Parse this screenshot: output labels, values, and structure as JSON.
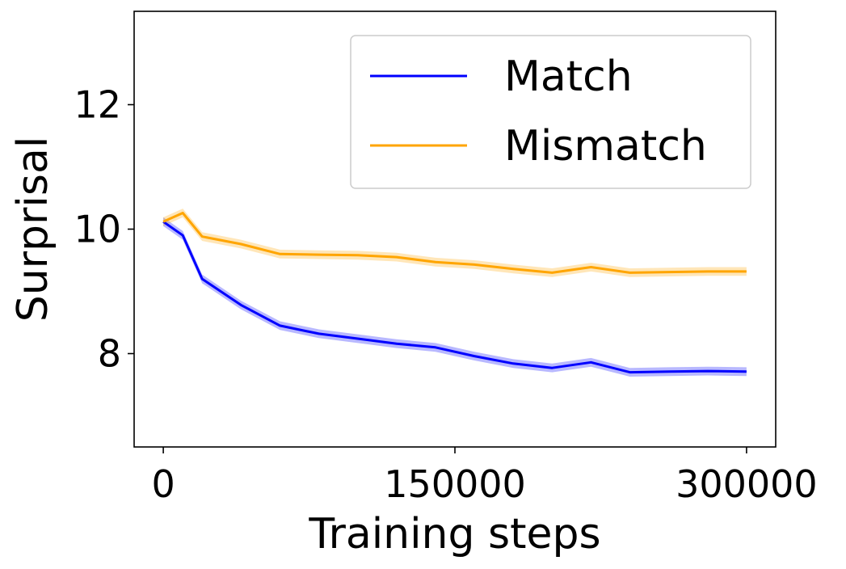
{
  "chart_data": {
    "type": "line",
    "xlabel": "Training steps",
    "ylabel": "Surprisal",
    "xlim": [
      -15000,
      315000
    ],
    "ylim": [
      6.5,
      13.5
    ],
    "xticks": [
      0,
      150000,
      300000
    ],
    "xtick_labels": [
      "0",
      "150000",
      "300000"
    ],
    "yticks": [
      8,
      10,
      12
    ],
    "ytick_labels": [
      "8",
      "10",
      "12"
    ],
    "grid": false,
    "legend_position": "top-right",
    "series": [
      {
        "name": "Match",
        "color": "#0000ff",
        "x": [
          0,
          10000,
          20000,
          40000,
          60000,
          80000,
          100000,
          120000,
          140000,
          160000,
          180000,
          200000,
          220000,
          240000,
          260000,
          280000,
          300000
        ],
        "y": [
          10.12,
          9.9,
          9.2,
          8.78,
          8.45,
          8.32,
          8.24,
          8.16,
          8.1,
          7.96,
          7.84,
          7.77,
          7.86,
          7.7,
          7.71,
          7.72,
          7.71
        ],
        "band": 0.07
      },
      {
        "name": "Mismatch",
        "color": "#ffa500",
        "x": [
          0,
          10000,
          20000,
          40000,
          60000,
          80000,
          100000,
          120000,
          140000,
          160000,
          180000,
          200000,
          220000,
          240000,
          260000,
          280000,
          300000
        ],
        "y": [
          10.12,
          10.26,
          9.88,
          9.76,
          9.6,
          9.59,
          9.58,
          9.55,
          9.47,
          9.43,
          9.36,
          9.3,
          9.39,
          9.3,
          9.31,
          9.32,
          9.32
        ],
        "band": 0.07
      }
    ]
  }
}
